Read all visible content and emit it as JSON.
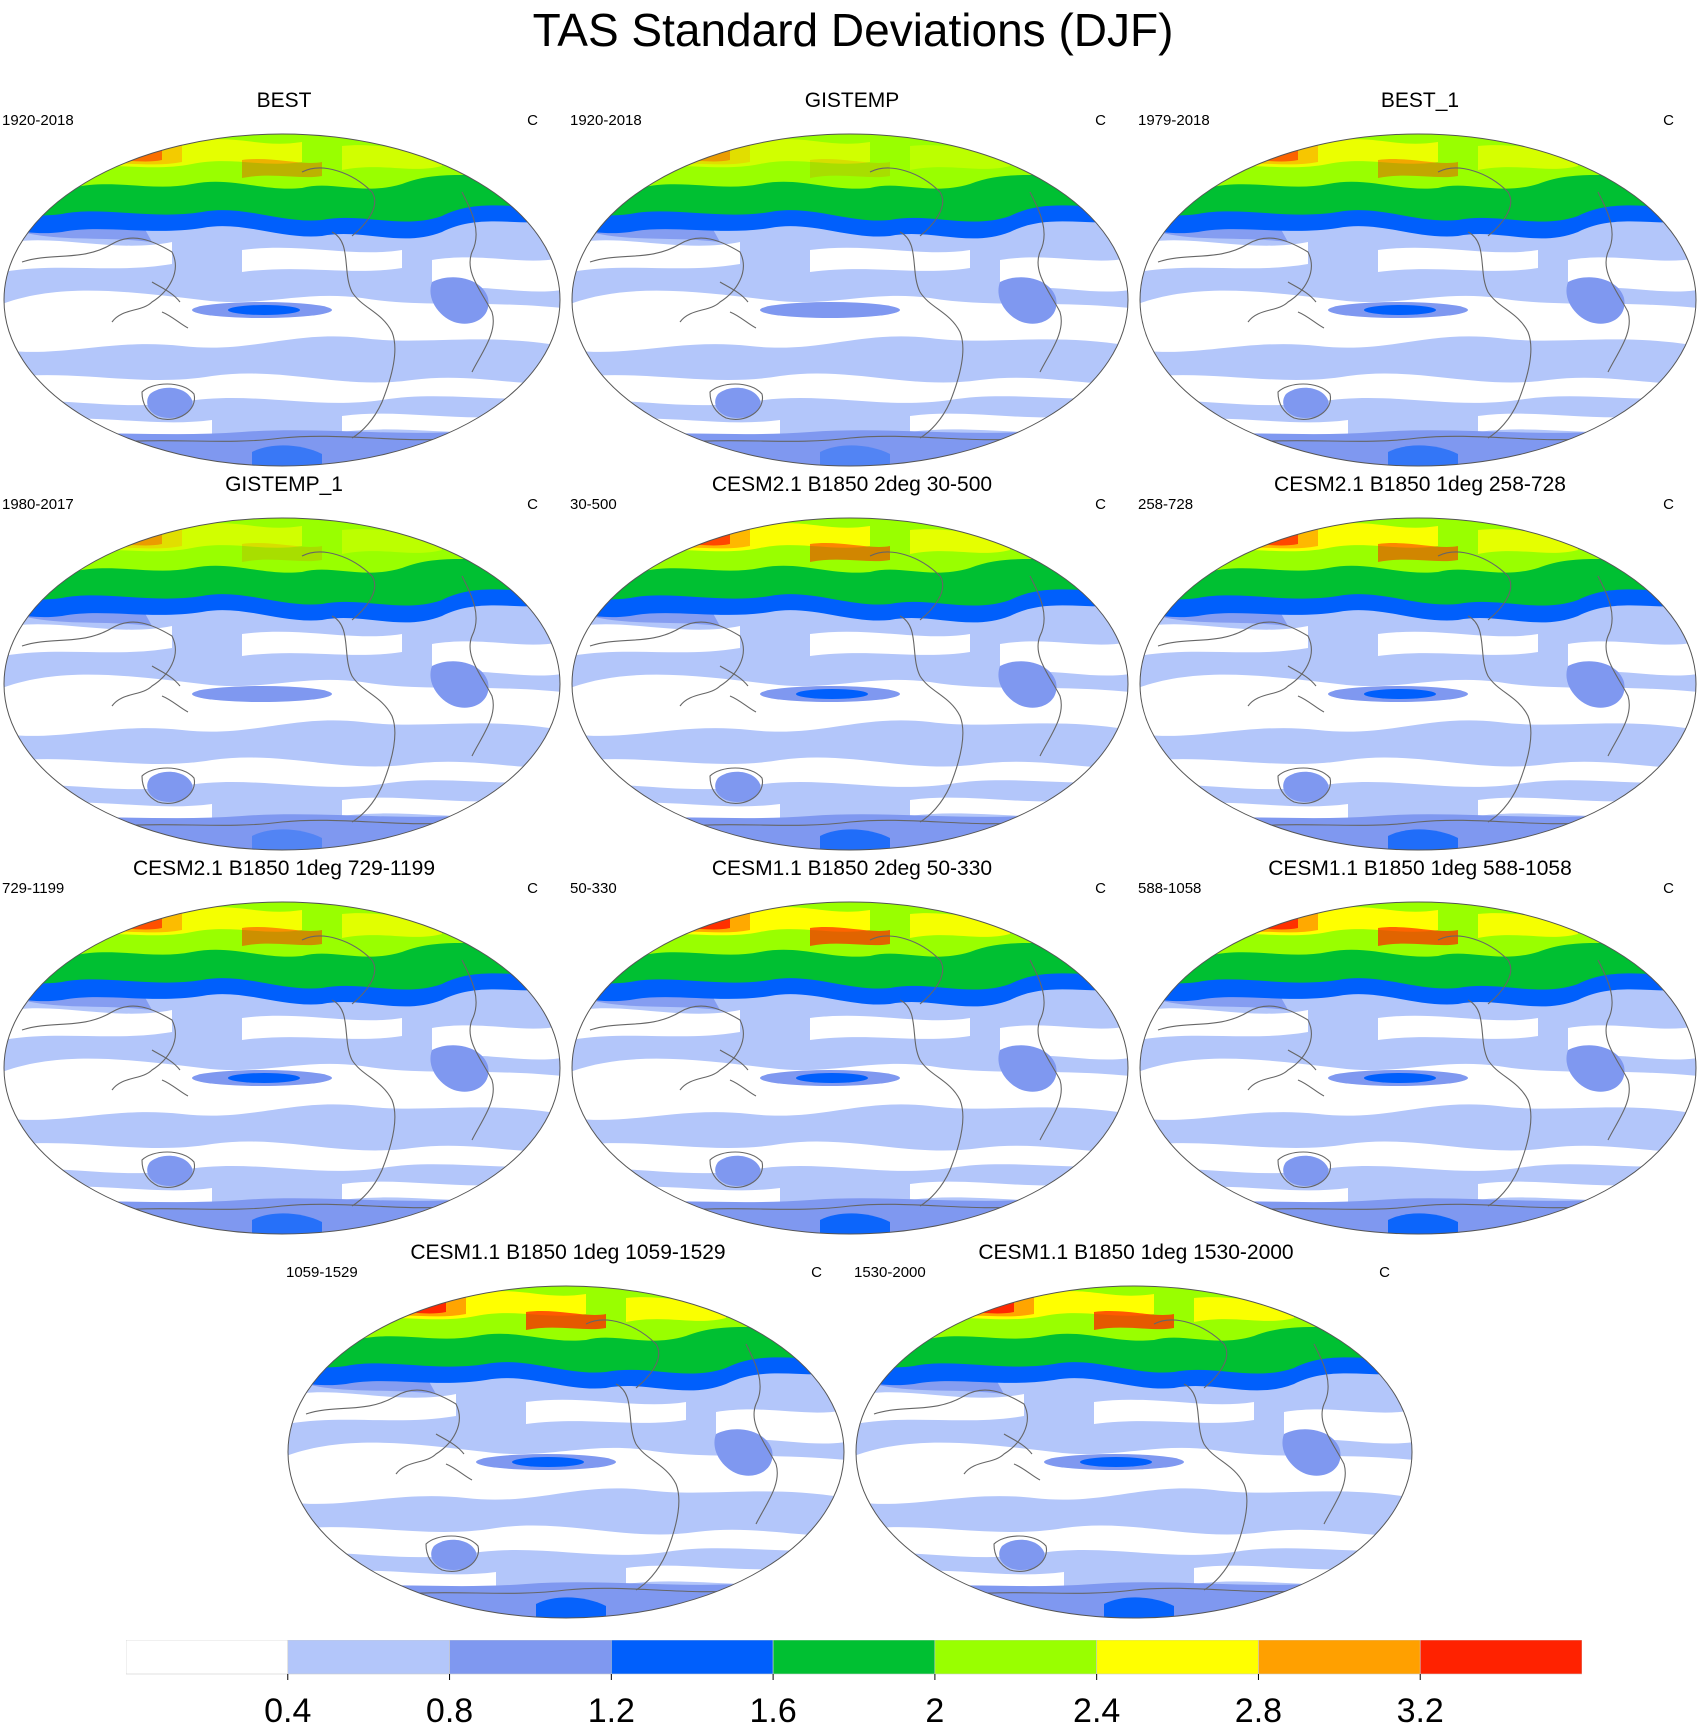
{
  "figure_title": "TAS Standard Deviations (DJF)",
  "units_label": "C",
  "colorbar": {
    "levels": [
      "0.4",
      "0.8",
      "1.2",
      "1.6",
      "2",
      "2.4",
      "2.8",
      "3.2"
    ],
    "colors": [
      "#ffffff",
      "#b3c6fa",
      "#7f98f0",
      "#005ffc",
      "#00c032",
      "#99ff00",
      "#ffff00",
      "#ffa000",
      "#ff2200"
    ]
  },
  "panels": [
    {
      "title": "BEST",
      "period": "1920-2018",
      "intensity": 0.55
    },
    {
      "title": "GISTEMP",
      "period": "1920-2018",
      "intensity": 0.35
    },
    {
      "title": "BEST_1",
      "period": "1979-2018",
      "intensity": 0.6
    },
    {
      "title": "GISTEMP_1",
      "period": "1980-2017",
      "intensity": 0.35
    },
    {
      "title": "CESM2.1 B1850 2deg 30-500",
      "period": "30-500",
      "intensity": 0.75
    },
    {
      "title": "CESM2.1 B1850 1deg 258-728",
      "period": "258-728",
      "intensity": 0.75
    },
    {
      "title": "CESM2.1 B1850 1deg 729-1199",
      "period": "729-1199",
      "intensity": 0.7
    },
    {
      "title": "CESM1.1 B1850 2deg 50-330",
      "period": "50-330",
      "intensity": 0.9
    },
    {
      "title": "CESM1.1 B1850 1deg 588-1058",
      "period": "588-1058",
      "intensity": 0.9
    },
    {
      "title": "CESM1.1 B1850 1deg 1059-1529",
      "period": "1059-1529",
      "intensity": 0.95
    },
    {
      "title": "CESM1.1 B1850 1deg 1530-2000",
      "period": "1530-2000",
      "intensity": 0.95
    }
  ]
}
